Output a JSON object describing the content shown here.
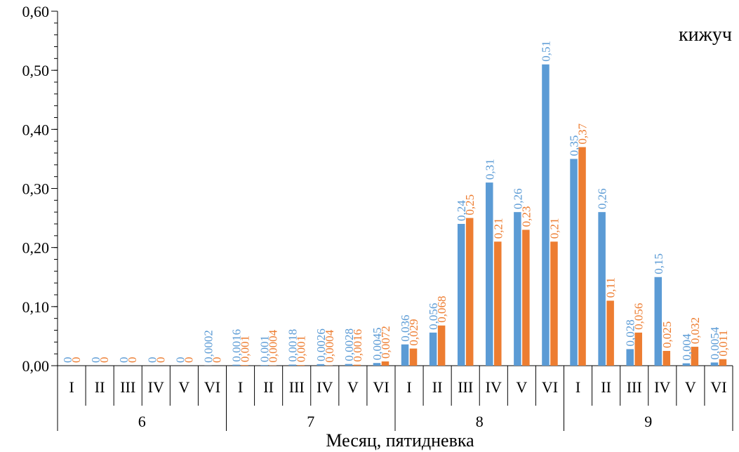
{
  "chart_data": {
    "type": "bar",
    "title": "",
    "annotation": "кижуч",
    "xlabel": "Месяц, пятидневка",
    "ylabel": "",
    "ylim": [
      0,
      0.6
    ],
    "yticks": [
      "0,00",
      "0,10",
      "0,20",
      "0,30",
      "0,40",
      "0,50",
      "0,60"
    ],
    "months": [
      "6",
      "7",
      "8",
      "9"
    ],
    "pentads": [
      "I",
      "II",
      "III",
      "IV",
      "V",
      "VI"
    ],
    "colors": {
      "blue": "#5B9BD5",
      "orange": "#ED7D31"
    },
    "series": [
      {
        "color": "#5B9BD5",
        "values": [
          0,
          0,
          0,
          0,
          0,
          0.0002,
          0.0016,
          0.001,
          0.0018,
          0.0026,
          0.0028,
          0.0045,
          0.036,
          0.056,
          0.24,
          0.31,
          0.26,
          0.51,
          0.35,
          0.26,
          0.028,
          0.15,
          0.004,
          0.0054
        ],
        "labels": [
          "0",
          "0",
          "0",
          "0",
          "0",
          "0,0002",
          "0,0016",
          "0,001",
          "0,0018",
          "0,0026",
          "0,0028",
          "0,0045",
          "0,036",
          "0,056",
          "0,24",
          "0,31",
          "0,26",
          "0,51",
          "0,35",
          "0,26",
          "0,028",
          "0,15",
          "0,004",
          "0,0054"
        ]
      },
      {
        "color": "#ED7D31",
        "values": [
          0,
          0,
          0,
          0,
          0,
          0,
          0.001,
          0.0004,
          0.001,
          0.0004,
          0.0016,
          0.0072,
          0.029,
          0.068,
          0.25,
          0.21,
          0.23,
          0.21,
          0.37,
          0.11,
          0.056,
          0.025,
          0.032,
          0.011
        ],
        "labels": [
          "0",
          "0",
          "0",
          "0",
          "0",
          "0",
          "0,001",
          "0,0004",
          "0,001",
          "0,0004",
          "0,0016",
          "0,0072",
          "0,029",
          "0,068",
          "0,25",
          "0,21",
          "0,23",
          "0,21",
          "0,37",
          "0,11",
          "0,056",
          "0,025",
          "0,032",
          "0,011"
        ]
      }
    ]
  }
}
